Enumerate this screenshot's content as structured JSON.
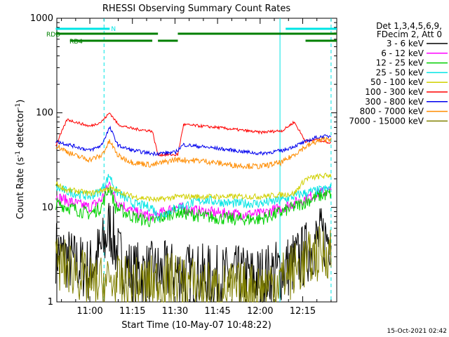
{
  "chart_data": {
    "type": "line",
    "title": "RHESSI Observing Summary Count Rates",
    "xlabel": "Start Time (10-May-07 10:48:22)",
    "ylabel_main": "Count Rate (s",
    "ylabel_sup1": "-1",
    "ylabel_mid": " detector",
    "ylabel_sup2": "-1",
    "ylabel_end": ")",
    "yscale": "log",
    "ylim": [
      1,
      1000
    ],
    "xlim": [
      "10:48:22",
      "12:27:00"
    ],
    "x_tick_labels": [
      "11:00",
      "11:15",
      "11:30",
      "11:45",
      "12:00",
      "12:15"
    ],
    "y_tick_labels": [
      "1",
      "10",
      "100",
      "1000"
    ],
    "legend_header": [
      "Det 1,3,4,5,6,9,",
      "FDecim 2, Att 0"
    ],
    "timestamp": "15-Oct-2021 02:42",
    "flags": [
      {
        "name": "N",
        "color": "#00e5e5",
        "segments": [
          [
            "10:48",
            "11:07"
          ],
          [
            "12:09",
            "12:27"
          ]
        ]
      },
      {
        "name": "RDD",
        "color": "#007f00",
        "segments": [
          [
            "10:48",
            "11:24"
          ],
          [
            "11:31",
            "12:27"
          ]
        ]
      },
      {
        "name": "RD4",
        "color": "#007f00",
        "segments": [
          [
            "10:53",
            "11:22"
          ],
          [
            "11:24",
            "11:31"
          ],
          [
            "12:16",
            "12:27"
          ]
        ]
      }
    ],
    "vlines": [
      {
        "time": "11:05",
        "style": "dashed",
        "color": "#00e5e5"
      },
      {
        "time": "12:07",
        "style": "solid",
        "color": "#00e5e5"
      },
      {
        "time": "12:25",
        "style": "dashed",
        "color": "#00e5e5"
      }
    ],
    "series": [
      {
        "name": "3 - 6 keV",
        "color": "#000000",
        "points": [
          [
            "10:48",
            3.5
          ],
          [
            "10:55",
            2.5
          ],
          [
            "11:00",
            2.2
          ],
          [
            "11:05",
            4
          ],
          [
            "11:07",
            6.5
          ],
          [
            "11:10",
            3
          ],
          [
            "11:15",
            2
          ],
          [
            "11:30",
            2
          ],
          [
            "11:45",
            1.8
          ],
          [
            "12:00",
            1.8
          ],
          [
            "12:08",
            2.2
          ],
          [
            "12:15",
            3
          ],
          [
            "12:20",
            4.5
          ],
          [
            "12:25",
            5
          ]
        ]
      },
      {
        "name": "6 - 12 keV",
        "color": "#ff00ff",
        "points": [
          [
            "10:48",
            13
          ],
          [
            "10:55",
            11
          ],
          [
            "11:00",
            10
          ],
          [
            "11:04",
            12
          ],
          [
            "11:07",
            18
          ],
          [
            "11:09",
            12
          ],
          [
            "11:15",
            9
          ],
          [
            "11:22",
            8
          ],
          [
            "11:30",
            10
          ],
          [
            "11:40",
            9
          ],
          [
            "11:50",
            8.5
          ],
          [
            "12:00",
            8.5
          ],
          [
            "12:08",
            10
          ],
          [
            "12:15",
            12
          ],
          [
            "12:20",
            14
          ],
          [
            "12:25",
            15
          ]
        ]
      },
      {
        "name": "12 - 25 keV",
        "color": "#00d000",
        "points": [
          [
            "10:48",
            11
          ],
          [
            "10:55",
            9.5
          ],
          [
            "11:00",
            8.5
          ],
          [
            "11:04",
            10
          ],
          [
            "11:07",
            17
          ],
          [
            "11:09",
            10
          ],
          [
            "11:15",
            8
          ],
          [
            "11:22",
            7
          ],
          [
            "11:30",
            9
          ],
          [
            "11:40",
            8
          ],
          [
            "11:50",
            7.5
          ],
          [
            "12:00",
            7.5
          ],
          [
            "12:08",
            9
          ],
          [
            "12:15",
            11
          ],
          [
            "12:20",
            13
          ],
          [
            "12:25",
            14
          ]
        ]
      },
      {
        "name": "25 - 50 keV",
        "color": "#00e5e5",
        "points": [
          [
            "10:48",
            16
          ],
          [
            "10:55",
            14
          ],
          [
            "11:00",
            13
          ],
          [
            "11:04",
            15
          ],
          [
            "11:07",
            22
          ],
          [
            "11:09",
            15
          ],
          [
            "11:15",
            11
          ],
          [
            "11:22",
            10
          ],
          [
            "11:24",
            8
          ],
          [
            "11:31",
            10
          ],
          [
            "11:40",
            12
          ],
          [
            "11:50",
            11
          ],
          [
            "12:00",
            11
          ],
          [
            "12:08",
            12
          ],
          [
            "12:15",
            14
          ],
          [
            "12:20",
            15
          ],
          [
            "12:25",
            16
          ]
        ]
      },
      {
        "name": "50 - 100 keV",
        "color": "#d0d000",
        "points": [
          [
            "10:48",
            18
          ],
          [
            "10:52",
            15
          ],
          [
            "10:55",
            15
          ],
          [
            "11:00",
            14
          ],
          [
            "11:07",
            16
          ],
          [
            "11:15",
            13
          ],
          [
            "11:24",
            12
          ],
          [
            "11:31",
            13
          ],
          [
            "11:45",
            13
          ],
          [
            "12:00",
            13
          ],
          [
            "12:12",
            14
          ],
          [
            "12:16",
            20
          ],
          [
            "12:20",
            21
          ],
          [
            "12:25",
            22
          ]
        ]
      },
      {
        "name": "100 - 300 keV",
        "color": "#ff0000",
        "points": [
          [
            "10:48",
            45
          ],
          [
            "10:52",
            85
          ],
          [
            "11:00",
            72
          ],
          [
            "11:04",
            80
          ],
          [
            "11:07",
            100
          ],
          [
            "11:10",
            75
          ],
          [
            "11:15",
            68
          ],
          [
            "11:22",
            64
          ],
          [
            "11:24",
            36
          ],
          [
            "11:31",
            36
          ],
          [
            "11:33",
            75
          ],
          [
            "11:45",
            70
          ],
          [
            "12:00",
            62
          ],
          [
            "12:08",
            65
          ],
          [
            "12:12",
            80
          ],
          [
            "12:16",
            50
          ],
          [
            "12:20",
            52
          ],
          [
            "12:25",
            48
          ]
        ]
      },
      {
        "name": "300 - 800 keV",
        "color": "#0000ee",
        "points": [
          [
            "10:48",
            50
          ],
          [
            "10:55",
            44
          ],
          [
            "11:00",
            40
          ],
          [
            "11:04",
            45
          ],
          [
            "11:07",
            70
          ],
          [
            "11:10",
            45
          ],
          [
            "11:15",
            40
          ],
          [
            "11:22",
            37
          ],
          [
            "11:30",
            38
          ],
          [
            "11:33",
            46
          ],
          [
            "11:45",
            42
          ],
          [
            "12:00",
            37
          ],
          [
            "12:08",
            40
          ],
          [
            "12:15",
            48
          ],
          [
            "12:20",
            55
          ],
          [
            "12:25",
            57
          ]
        ]
      },
      {
        "name": "800 - 7000 keV",
        "color": "#ff8c00",
        "points": [
          [
            "10:48",
            45
          ],
          [
            "10:55",
            35
          ],
          [
            "11:00",
            32
          ],
          [
            "11:04",
            35
          ],
          [
            "11:07",
            50
          ],
          [
            "11:10",
            35
          ],
          [
            "11:15",
            30
          ],
          [
            "11:22",
            28
          ],
          [
            "11:30",
            32
          ],
          [
            "11:40",
            31
          ],
          [
            "11:50",
            28
          ],
          [
            "12:00",
            27
          ],
          [
            "12:08",
            30
          ],
          [
            "12:15",
            42
          ],
          [
            "12:20",
            50
          ],
          [
            "12:25",
            54
          ]
        ]
      },
      {
        "name": "7000 - 15000 keV",
        "color": "#808000",
        "points": [
          [
            "10:48",
            2.5
          ],
          [
            "10:55",
            2.2
          ],
          [
            "11:00",
            1.5
          ],
          [
            "11:07",
            1.6
          ],
          [
            "11:15",
            1.5
          ],
          [
            "11:30",
            1.7
          ],
          [
            "11:45",
            1.3
          ],
          [
            "12:00",
            1.4
          ],
          [
            "12:08",
            1.8
          ],
          [
            "12:15",
            2.5
          ],
          [
            "12:20",
            3.2
          ],
          [
            "12:25",
            3.5
          ]
        ]
      }
    ]
  }
}
